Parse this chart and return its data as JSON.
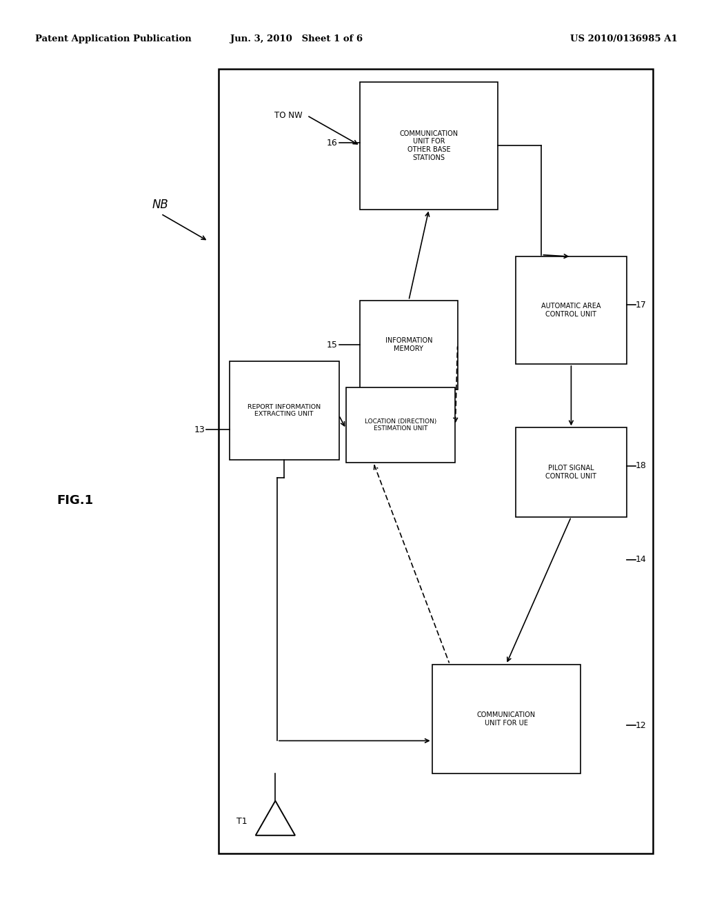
{
  "title_left": "Patent Application Publication",
  "title_center": "Jun. 3, 2010   Sheet 1 of 6",
  "title_right": "US 2010/0136985 A1",
  "fig_label": "FIG.1",
  "nb_label": "NB",
  "t1_label": "T1",
  "to_nw_label": "TO NW",
  "background": "#ffffff",
  "text_color": "#000000"
}
